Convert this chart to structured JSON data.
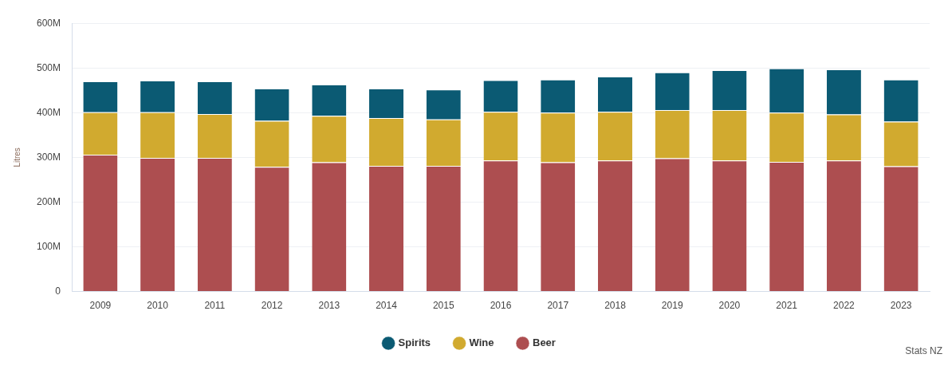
{
  "chart_data": {
    "type": "bar",
    "stacked": true,
    "ylabel": "Litres",
    "categories": [
      "2009",
      "2010",
      "2011",
      "2012",
      "2013",
      "2014",
      "2015",
      "2016",
      "2017",
      "2018",
      "2019",
      "2020",
      "2021",
      "2022",
      "2023"
    ],
    "series": [
      {
        "name": "Beer",
        "color": "#ad4e50",
        "values": [
          306,
          299,
          299,
          279,
          289,
          281,
          281,
          293,
          289,
          293,
          298,
          293,
          290,
          293,
          280
        ]
      },
      {
        "name": "Wine",
        "color": "#d1aa2f",
        "values": [
          95,
          102,
          98,
          103,
          104,
          107,
          104,
          109,
          111,
          109,
          108,
          113,
          110,
          103,
          100
        ]
      },
      {
        "name": "Spirits",
        "color": "#0b5a73",
        "values": [
          69,
          71,
          73,
          72,
          70,
          66,
          67,
          71,
          74,
          79,
          84,
          89,
          99,
          101,
          94
        ]
      }
    ],
    "ylim": [
      0,
      600
    ],
    "yticks": [
      0,
      {
        "value": 100,
        "label": "100M"
      },
      {
        "value": 200,
        "label": "200M"
      },
      {
        "value": 300,
        "label": "300M"
      },
      {
        "value": 400,
        "label": "400M"
      },
      {
        "value": 500,
        "label": "500M"
      },
      {
        "value": 600,
        "label": "600M"
      }
    ],
    "grid": "y",
    "legend": "bottom",
    "annotations": [
      "Stats NZ"
    ]
  }
}
